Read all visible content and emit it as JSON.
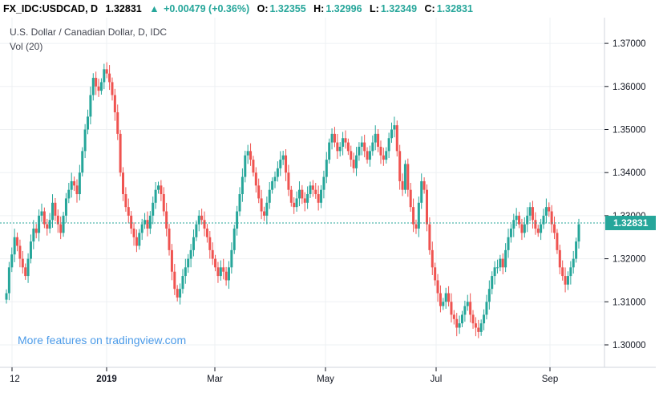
{
  "header": {
    "symbol": "FX_IDC:USDCAD, D",
    "last": "1.32831",
    "change_icon": "triangle-up-icon",
    "change": "+0.00479 (+0.36%)",
    "open_label": "O:",
    "open": "1.32355",
    "high_label": "H:",
    "high": "1.32996",
    "low_label": "L:",
    "low": "1.32349",
    "close_label": "C:",
    "close": "1.32831"
  },
  "legend": {
    "title": "U.S. Dollar / Canadian Dollar, D, IDC",
    "volume": "Vol (20)"
  },
  "promo": "More features on tradingview.com",
  "colors": {
    "up": "#26a69a",
    "down": "#ef5350",
    "price_line": "#26a69a"
  },
  "chart_data": {
    "type": "candlestick",
    "title": "U.S. Dollar / Canadian Dollar, D, IDC",
    "ylim": [
      1.295,
      1.372
    ],
    "y_ticks": [
      "1.30000",
      "1.31000",
      "1.32000",
      "1.33000",
      "1.34000",
      "1.35000",
      "1.36000",
      "1.37000"
    ],
    "x_ticks": [
      "12",
      "2019",
      "Mar",
      "May",
      "Jul",
      "Sep"
    ],
    "current_price": "1.32831",
    "grid": true,
    "approx_closes": [
      1.312,
      1.318,
      1.321,
      1.325,
      1.323,
      1.32,
      1.318,
      1.316,
      1.32,
      1.324,
      1.327,
      1.326,
      1.33,
      1.331,
      1.328,
      1.327,
      1.329,
      1.333,
      1.33,
      1.328,
      1.326,
      1.33,
      1.334,
      1.336,
      1.338,
      1.337,
      1.335,
      1.34,
      1.345,
      1.35,
      1.353,
      1.358,
      1.362,
      1.36,
      1.359,
      1.361,
      1.364,
      1.363,
      1.361,
      1.358,
      1.354,
      1.349,
      1.34,
      1.335,
      1.332,
      1.33,
      1.327,
      1.325,
      1.323,
      1.326,
      1.328,
      1.329,
      1.327,
      1.33,
      1.333,
      1.336,
      1.337,
      1.335,
      1.331,
      1.327,
      1.322,
      1.317,
      1.313,
      1.311,
      1.313,
      1.316,
      1.318,
      1.32,
      1.322,
      1.325,
      1.328,
      1.33,
      1.329,
      1.327,
      1.325,
      1.322,
      1.32,
      1.318,
      1.316,
      1.318,
      1.317,
      1.315,
      1.318,
      1.322,
      1.327,
      1.331,
      1.335,
      1.339,
      1.344,
      1.345,
      1.343,
      1.34,
      1.337,
      1.334,
      1.331,
      1.33,
      1.333,
      1.336,
      1.338,
      1.339,
      1.341,
      1.343,
      1.344,
      1.34,
      1.336,
      1.333,
      1.332,
      1.334,
      1.336,
      1.334,
      1.333,
      1.335,
      1.337,
      1.336,
      1.335,
      1.333,
      1.336,
      1.339,
      1.343,
      1.347,
      1.349,
      1.347,
      1.345,
      1.346,
      1.348,
      1.347,
      1.345,
      1.343,
      1.341,
      1.344,
      1.346,
      1.347,
      1.345,
      1.343,
      1.345,
      1.347,
      1.349,
      1.346,
      1.344,
      1.343,
      1.345,
      1.348,
      1.35,
      1.351,
      1.345,
      1.338,
      1.336,
      1.342,
      1.336,
      1.332,
      1.328,
      1.327,
      1.333,
      1.338,
      1.336,
      1.328,
      1.322,
      1.318,
      1.315,
      1.312,
      1.309,
      1.31,
      1.312,
      1.31,
      1.307,
      1.306,
      1.304,
      1.305,
      1.307,
      1.309,
      1.31,
      1.307,
      1.305,
      1.304,
      1.303,
      1.305,
      1.307,
      1.31,
      1.313,
      1.316,
      1.318,
      1.318,
      1.32,
      1.318,
      1.322,
      1.325,
      1.327,
      1.329,
      1.33,
      1.328,
      1.326,
      1.328,
      1.33,
      1.332,
      1.329,
      1.327,
      1.326,
      1.328,
      1.33,
      1.332,
      1.331,
      1.328,
      1.326,
      1.322,
      1.318,
      1.316,
      1.314,
      1.316,
      1.318,
      1.32,
      1.324,
      1.328
    ]
  }
}
